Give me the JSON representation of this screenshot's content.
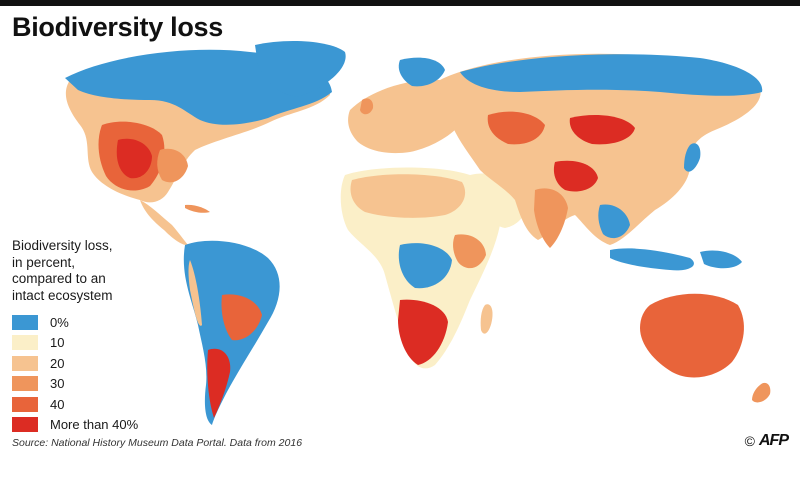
{
  "title": "Biodiversity loss",
  "legend": {
    "title_lines": [
      "Biodiversity loss,",
      "in percent,",
      "compared to an",
      "intact ecosystem"
    ],
    "items": [
      {
        "label": "0%",
        "color": "#3b97d3"
      },
      {
        "label": "10",
        "color": "#fbefc8"
      },
      {
        "label": "20",
        "color": "#f6c390"
      },
      {
        "label": "30",
        "color": "#ef955c"
      },
      {
        "label": "40",
        "color": "#e8643a"
      },
      {
        "label": "More than 40%",
        "color": "#dc2c23"
      }
    ]
  },
  "source": "Source: National History Museum Data Portal. Data from 2016",
  "credit": {
    "copyright": "©",
    "logo": "AFP"
  }
}
